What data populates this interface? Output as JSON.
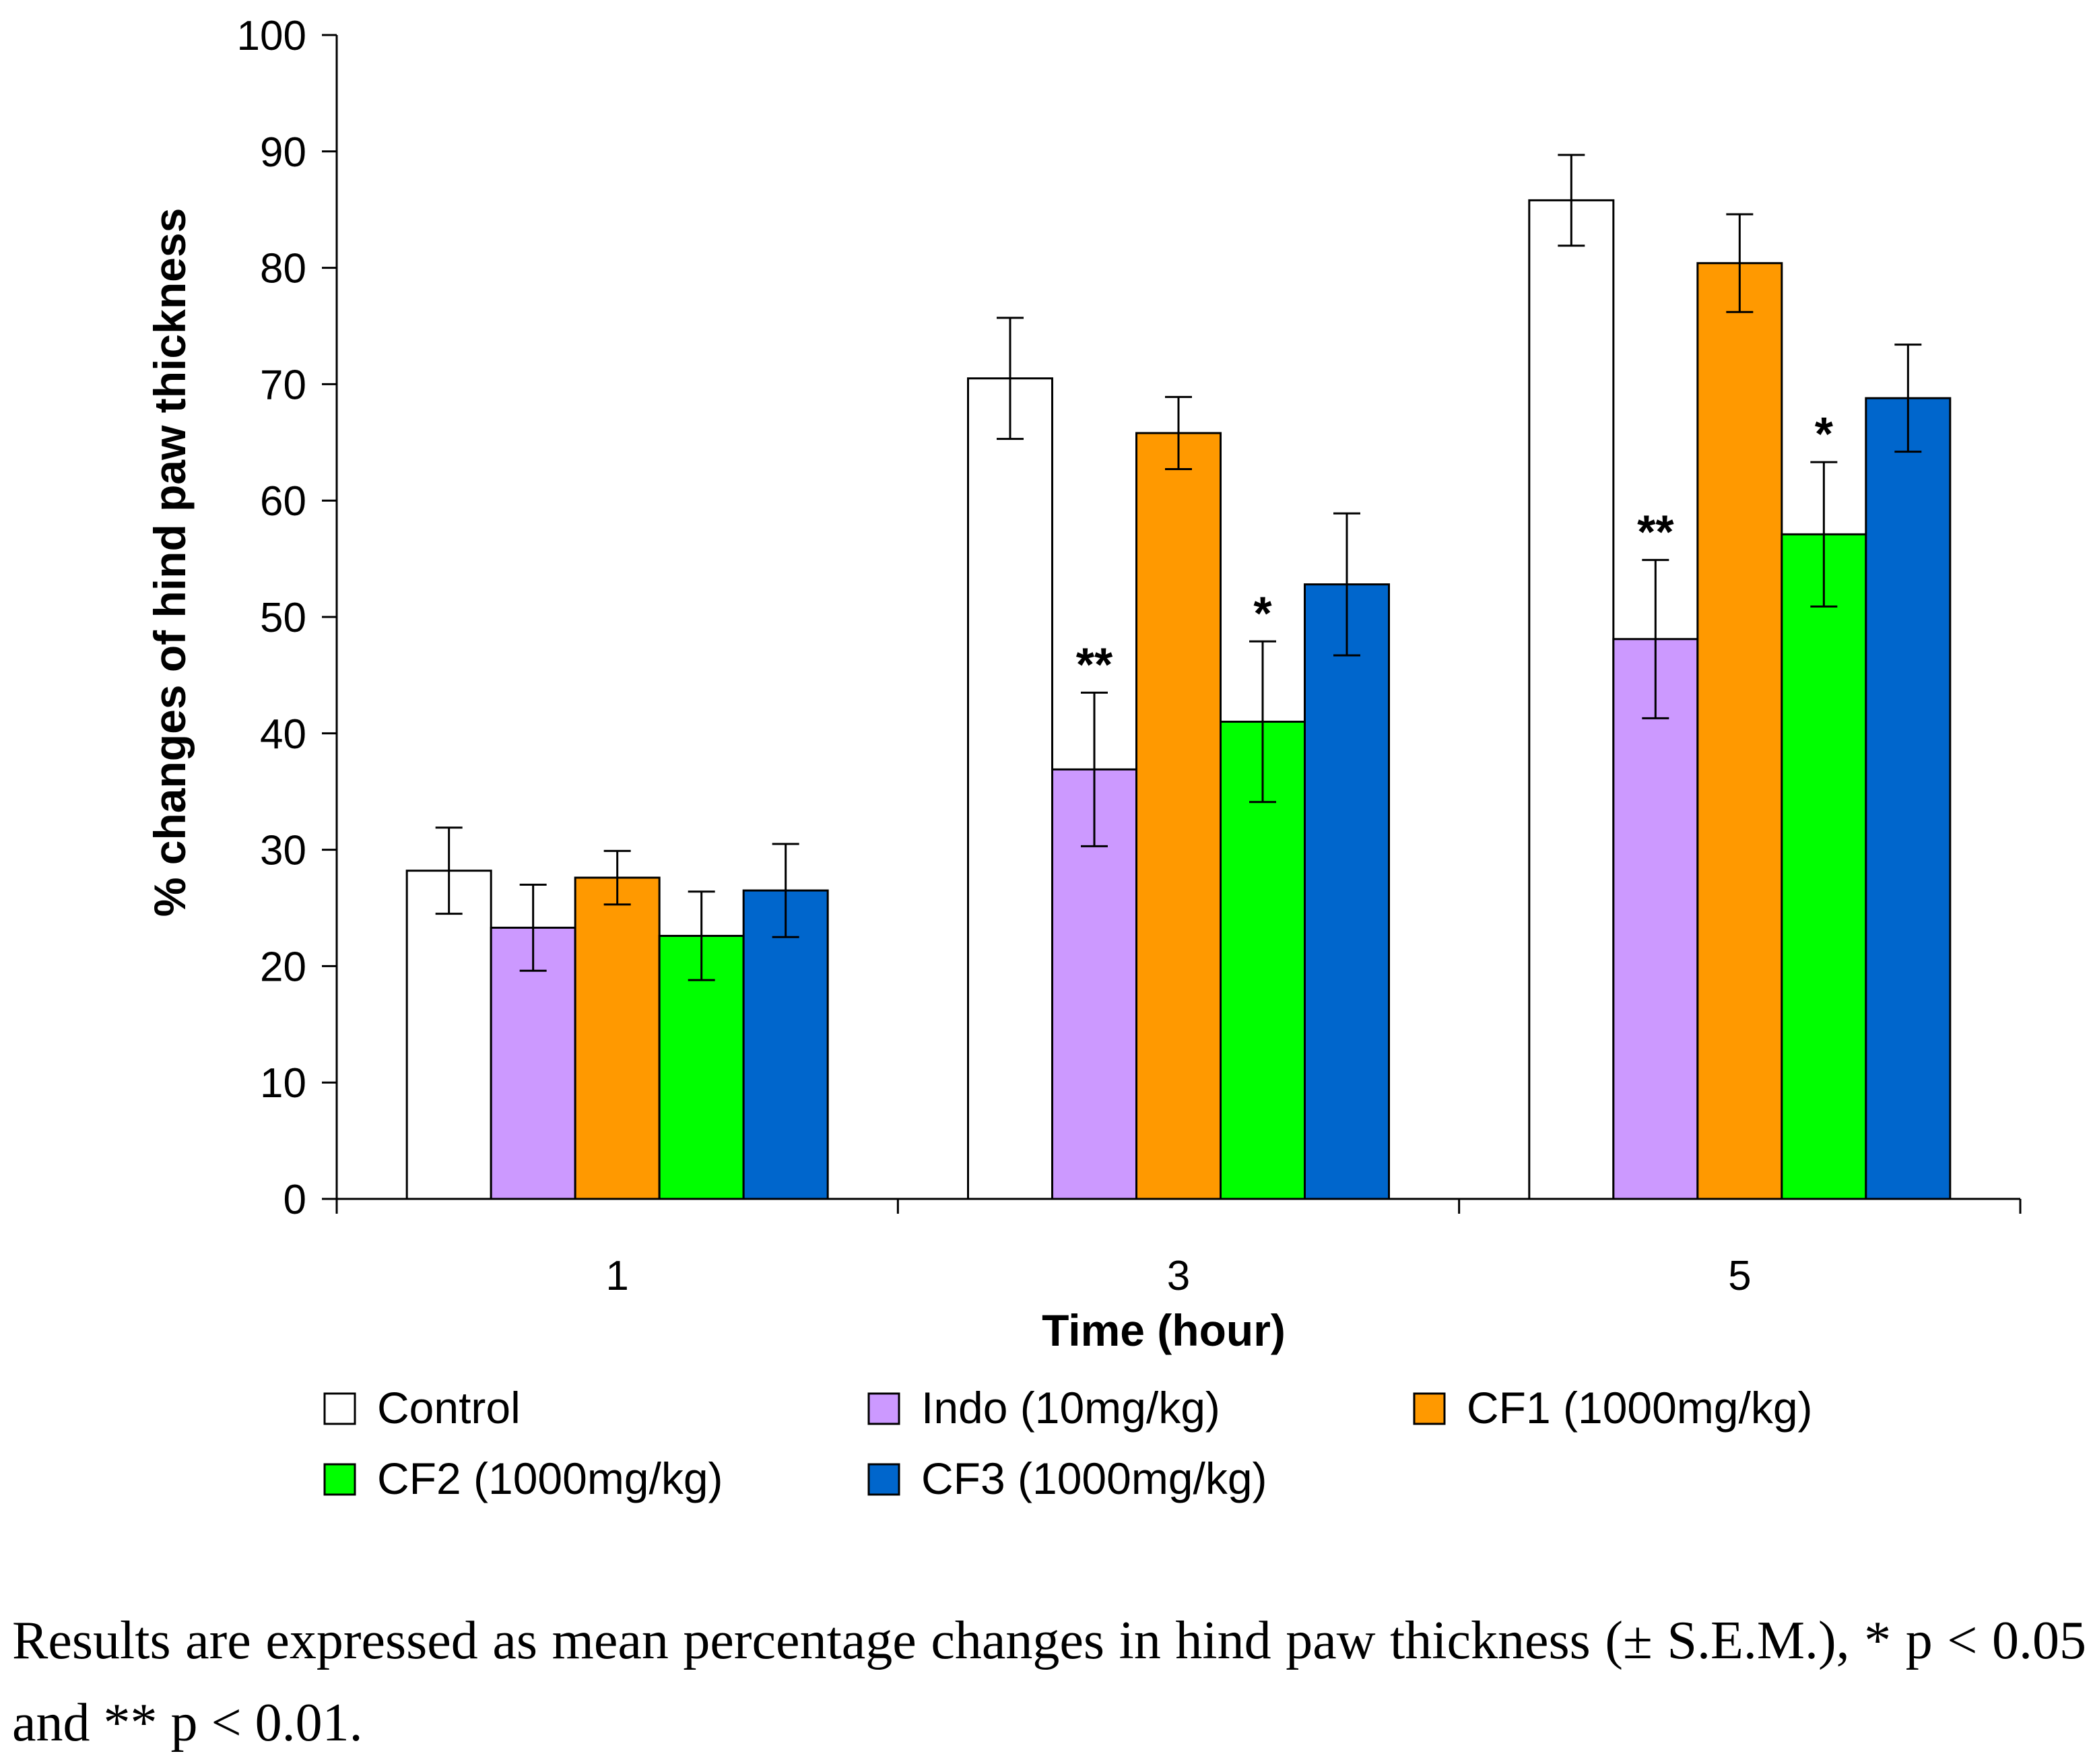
{
  "chart_data": {
    "type": "bar",
    "title": "",
    "xlabel": "Time (hour)",
    "ylabel": "% changes of hind paw thickness",
    "ylim": [
      0,
      100
    ],
    "yticks": [
      "0",
      "10",
      "20",
      "30",
      "40",
      "50",
      "60",
      "70",
      "80",
      "90",
      "100"
    ],
    "categories": [
      "1",
      "3",
      "5"
    ],
    "series": [
      {
        "name": "Control",
        "color": "#ffffff",
        "values": [
          28.2,
          70.5,
          85.8
        ],
        "errors": [
          3.7,
          5.2,
          3.9
        ],
        "significance": [
          "",
          "",
          ""
        ]
      },
      {
        "name": "Indo (10mg/kg)",
        "color": "#cc99ff",
        "values": [
          23.3,
          36.9,
          48.1
        ],
        "errors": [
          3.7,
          6.6,
          6.8
        ],
        "significance": [
          "",
          "**",
          "**"
        ]
      },
      {
        "name": "CF1 (1000mg/kg)",
        "color": "#ff9900",
        "values": [
          27.6,
          65.8,
          80.4
        ],
        "errors": [
          2.3,
          3.1,
          4.2
        ],
        "significance": [
          "",
          "",
          ""
        ]
      },
      {
        "name": "CF2 (1000mg/kg)",
        "color": "#00ff00",
        "values": [
          22.6,
          41.0,
          57.1
        ],
        "errors": [
          3.8,
          6.9,
          6.2
        ],
        "significance": [
          "",
          "*",
          "*"
        ]
      },
      {
        "name": "CF3 (1000mg/kg)",
        "color": "#0066cc",
        "values": [
          26.5,
          52.8,
          68.8
        ],
        "errors": [
          4.0,
          6.1,
          4.6
        ],
        "significance": [
          "",
          "",
          ""
        ]
      }
    ],
    "legend_position": "bottom",
    "grid": false
  },
  "caption": "Results are expressed as mean percentage changes in hind paw thickness (± S.E.M.), * p < 0.05 and ** p < 0.01."
}
